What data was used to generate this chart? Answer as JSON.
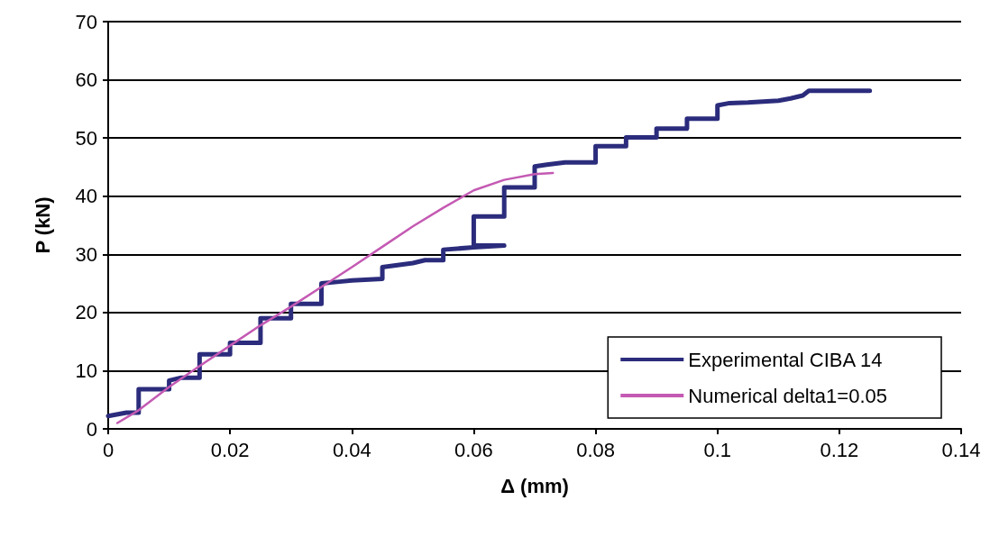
{
  "chart_data": {
    "type": "line",
    "xlabel": "Δ (mm)",
    "ylabel": "P (kN)",
    "xlim": [
      0,
      0.14
    ],
    "xticks": [
      0,
      0.02,
      0.04,
      0.06,
      0.08,
      0.1,
      0.12,
      0.14
    ],
    "ylim": [
      0,
      70
    ],
    "yticks": [
      0,
      10,
      20,
      30,
      40,
      50,
      60,
      70
    ],
    "grid": "y",
    "legend": "bottom right",
    "marker": "none",
    "line_style": "solid",
    "series": [
      {
        "name": "Experimental CIBA 14",
        "color": "#2b2c7c",
        "x": [
          0,
          0.003,
          0.005,
          0.005,
          0.01,
          0.01,
          0.012,
          0.015,
          0.015,
          0.02,
          0.02,
          0.025,
          0.025,
          0.03,
          0.03,
          0.035,
          0.035,
          0.038,
          0.04,
          0.045,
          0.045,
          0.05,
          0.052,
          0.055,
          0.055,
          0.06,
          0.065,
          0.06,
          0.06,
          0.065,
          0.065,
          0.07,
          0.07,
          0.072,
          0.075,
          0.08,
          0.08,
          0.085,
          0.085,
          0.09,
          0.09,
          0.095,
          0.095,
          0.1,
          0.1,
          0.102,
          0.105,
          0.11,
          0.112,
          0.114,
          0.115,
          0.125
        ],
        "values": [
          2.2,
          2.8,
          2.8,
          6.8,
          6.8,
          8.3,
          8.8,
          8.8,
          12.8,
          12.8,
          14.8,
          14.8,
          19,
          19,
          21.5,
          21.5,
          25,
          25.3,
          25.5,
          25.8,
          27.8,
          28.5,
          29,
          29,
          30.8,
          31.2,
          31.5,
          31.5,
          36.5,
          36.5,
          41.5,
          41.5,
          45.1,
          45.4,
          45.8,
          45.8,
          48.6,
          48.6,
          50.1,
          50.1,
          51.6,
          51.6,
          53.3,
          53.3,
          55.6,
          56,
          56.1,
          56.4,
          56.8,
          57.3,
          58.1,
          58.1
        ]
      },
      {
        "name": "Numerical delta1=0.05",
        "color": "#c45ab3",
        "x": [
          0.0015,
          0.005,
          0.01,
          0.015,
          0.02,
          0.025,
          0.03,
          0.035,
          0.04,
          0.045,
          0.05,
          0.055,
          0.06,
          0.065,
          0.07,
          0.073
        ],
        "values": [
          1.0,
          3.2,
          7.2,
          10.8,
          14.3,
          17.8,
          21.0,
          24.4,
          27.8,
          31.3,
          34.8,
          38.0,
          41.0,
          42.8,
          43.8,
          44.0
        ]
      }
    ]
  }
}
